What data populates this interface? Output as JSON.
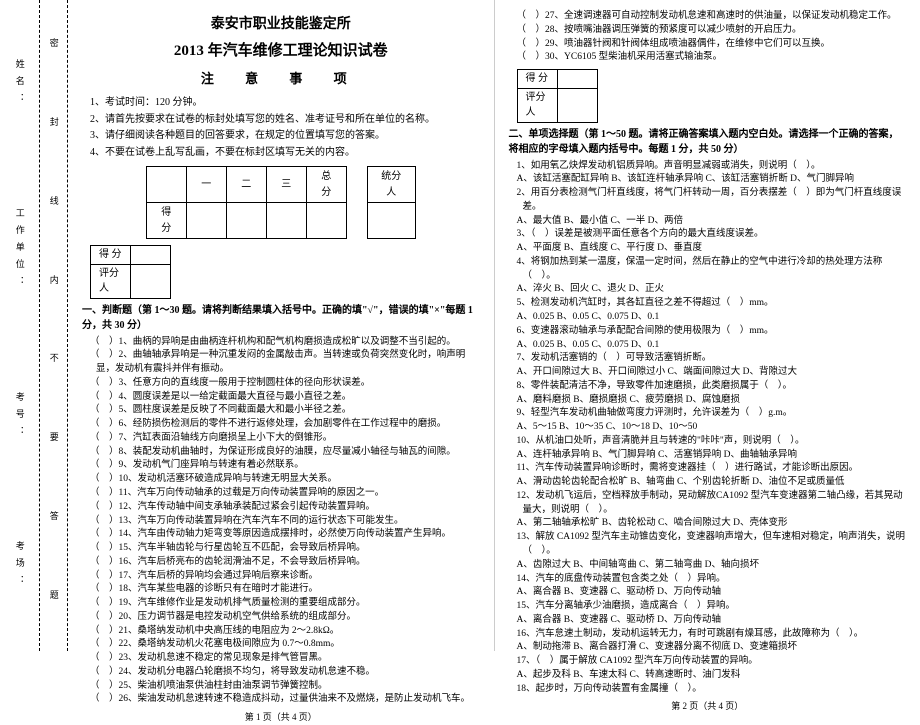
{
  "binding": {
    "labels": [
      "姓名：",
      "工作单位：",
      "考号：",
      "考场："
    ],
    "vertical": [
      "密",
      "封",
      "线",
      "内",
      "不",
      "要",
      "答",
      "题"
    ],
    "extra": [
      "工种：",
      "准考证号："
    ]
  },
  "header": {
    "org": "泰安市职业技能鉴定所",
    "title": "2013 年汽车维修工理论知识试卷",
    "notice": "注 意 事 项"
  },
  "instructions": [
    "1、考试时间：120 分钟。",
    "2、请首先按要求在试卷的标封处填写您的姓名、准考证号和所在单位的名称。",
    "3、请仔细阅读各种题目的回答要求，在规定的位置填写您的答案。",
    "4、不要在试卷上乱写乱画，不要在标封区填写无关的内容。"
  ],
  "score_table": {
    "cols": [
      "",
      "一",
      "二",
      "三",
      "总分",
      "",
      "统分人"
    ],
    "row_label": "得分"
  },
  "mini_table": {
    "r1": "得 分",
    "r2": "评分人"
  },
  "section1": {
    "title": "一、判断题（第 1～30 题。请将判断结果填入括号中。正确的填\"√\"，错误的填\"×\"每题 1 分，共 30 分）",
    "items": [
      "（　）1、曲柄的异响是由曲柄连杆机构和配气机构磨损造成松旷以及调整不当引起的。",
      "（　）2、曲轴轴承异响是一种沉重发闷的金属敲击声。当转速或负荷突然变化时，响声明显，发动机有震抖并伴有振动。",
      "（　）3、任意方向的直线度一般用于控制圆柱体的径向形状误差。",
      "（　）4、圆度误差是以一给定截面最大直径与最小直径之差。",
      "（　）5、圆柱度误差是反映了不同截面最大和最小半径之差。",
      "（　）6、经防损伤检测后的零件不进行返修处理，会加剧零件在工作过程中的磨损。",
      "（　）7、汽缸表面沿轴线方向磨损呈上小下大的倒锥形。",
      "（　）8、装配发动机曲轴时，为保证形成良好的油膜，应尽量减小轴径与轴瓦的间隙。",
      "（　）9、发动机气门座异响与转速有着必然联系。",
      "（　）10、发动机活塞环破造成异响与转速无明显大关系。",
      "（　）11、汽车万向传动轴承的过载是万向传动装置异响的原因之一。",
      "（　）12、汽车传动轴中间支承轴承装配过紧会引起传动装置异响。",
      "（　）13、汽车万向传动装置异响在汽车汽车不同的运行状态下可能发生。",
      "（　）14、汽车由传动轴力矩弯变等原因造成摆排时，必然使万向传动装置产生异响。",
      "（　）15、汽车半轴齿轮与行星齿轮互不匹配，会导致后桥异响。",
      "（　）16、汽车后桥亮布的齿轮润滑油不足，不会导致后桥异响。",
      "（　）17、汽车后桥的异响均会通过异响后察来诊断。",
      "（　）18、汽车某些电器的诊断只有在暗时才能进行。",
      "（　）19、汽车维修作业是发动机排气质量检测的重要组成部分。",
      "（　）20、压力调节器是电控发动机空气供给系统的组成部分。",
      "（　）21、桑塔纳发动机中央高压线的电阻应为 2～2.8kΩ。",
      "（　）22、桑塔纳发动机火花塞电极间隙应为 0.7～0.8mm。",
      "（　）23、发动机怠速不稳定的常见现象是排气管冒黑。",
      "（　）24、发动机分电器凸轮磨损不均匀，将导致发动机怠速不稳。",
      "（　）25、柴油机喷油泵供油柱封由油泵调节弹簧控制。",
      "（　）26、柴油发动机怠速转速不稳造成抖动，过量供油来不及燃烧，是防止发动机飞车。"
    ]
  },
  "page2_pre": [
    "（　）27、全速调速器可自动控制发动机怠速和高速时的供油量，以保证发动机稳定工作。",
    "（　）28、按喷嘴油器调压弹簧的预紧度可以减少喷射的开启压力。",
    "（　）29、喷油器针阀和针阀体组成喷油器偶件，在维修中它们可以互换。",
    "（　）30、YC6105 型柴油机采用活塞式输油泵。"
  ],
  "section2": {
    "title": "二、单项选择题（第 1～50 题。请将正确答案填入题内空白处。请选择一个正确的答案，将相应的字母填入题内括号中。每题 1 分，共 50 分）",
    "items": [
      "1、如用氧乙炔焊发动机铝质异响。声音明显减弱或消失，则说明（　）。",
      "A、该缸活塞配缸异响 B、该缸连杆轴承异响 C、该缸活塞销折断 D、气门脚异响",
      "2、用百分表检测气门杆直线度，将气门杆转动一周，百分表摆差（　）即为气门杆直线度误差。",
      "A、最大值 B、最小值 C、一半 D、两倍",
      "3、（　）误差是被测平面任意各个方向的最大直线度误差。",
      "A、平面度 B、直线度 C、平行度 D、垂直度",
      "4、将钢加热到某一温度，保温一定时间，然后在静止的空气中进行冷却的热处理方法称（　）。",
      "A、淬火 B、回火 C、退火 D、正火",
      "5、检测发动机汽缸时，其各缸直径之差不得超过（　）mm。",
      "A、0.025 B、0.05 C、0.075 D、0.1",
      "6、变速器滚动轴承与承配配合间隙的使用极限为（　）mm。",
      "A、0.025 B、0.05 C、0.075 D、0.1",
      "7、发动机活塞销的（　）可导致活塞销折断。",
      "A、开口间隙过大 B、开口间隙过小 C、端面间隙过大 D、背隙过大",
      "8、零件装配清洁不净，导致零件加速磨损，此类磨损属于（　）。",
      "A、磨料磨损 B、磨损磨损 C、疲劳磨损 D、腐蚀磨损",
      "9、轻型汽车发动机曲轴做弯度力评测时，允许误差为（　）g.m。",
      "A、5～15 B、10～35 C、10～18 D、10～50",
      "10、从机油口处听，声音清脆并且与转速的\"咔咔\"声，则说明（　）。",
      "A、连杆轴承异响 B、气门脚异响 C、活塞销异响 D、曲轴轴承异响",
      "11、汽车传动装置异响诊断时，需将变速器挂（　）进行路试，才能诊断出原因。",
      "A、滑动齿轮齿轮配合松旷 B、轴弯曲 C、个别齿轮折断 D、油位不足或质量低",
      "12、发动机飞运后，空档释放手制动，晃动解放CA1092 型汽车变速器第二轴凸缘，若其晃动量大，则说明（　）。",
      "A、第二轴轴承松旷 B、齿轮松动 C、啮合间隙过大 D、壳体变形",
      "13、解放 CA1092 型汽车主动锥齿变化，变速器响声增大，但车速相对稳定，响声消失，说明（　）。",
      "A、齿隙过大 B、中间轴弯曲 C、第二轴弯曲 D、轴向损坏",
      "14、汽车的底盘传动装置包含类之处（　）异响。",
      "A、离合器 B、变速器 C、驱动桥 D、万向传动轴",
      "15、汽车分离轴承少油磨损，造成离合（　）异响。",
      "A、离合器 B、变速器 C、驱动桥 D、万向传动轴",
      "16、汽车怠速土制动，发动机运转无力，有时可跳剧有燥耳感，此故障称为（　）。",
      "A、制动拖滞 B、离合器打滑 C、变速器分离不彻底 D、变速箱损坏",
      "17、（　）属于解放 CA1092 型汽车万向传动装置的异响。",
      "A、起步及科 B、车速太科 C、转高速断时、油门发科",
      "18、起步时，万向传动装置有金属撞（　）。"
    ]
  },
  "footers": {
    "p1": "第 1 页（共 4 页）",
    "p2": "第 2 页（共 4 页）"
  }
}
